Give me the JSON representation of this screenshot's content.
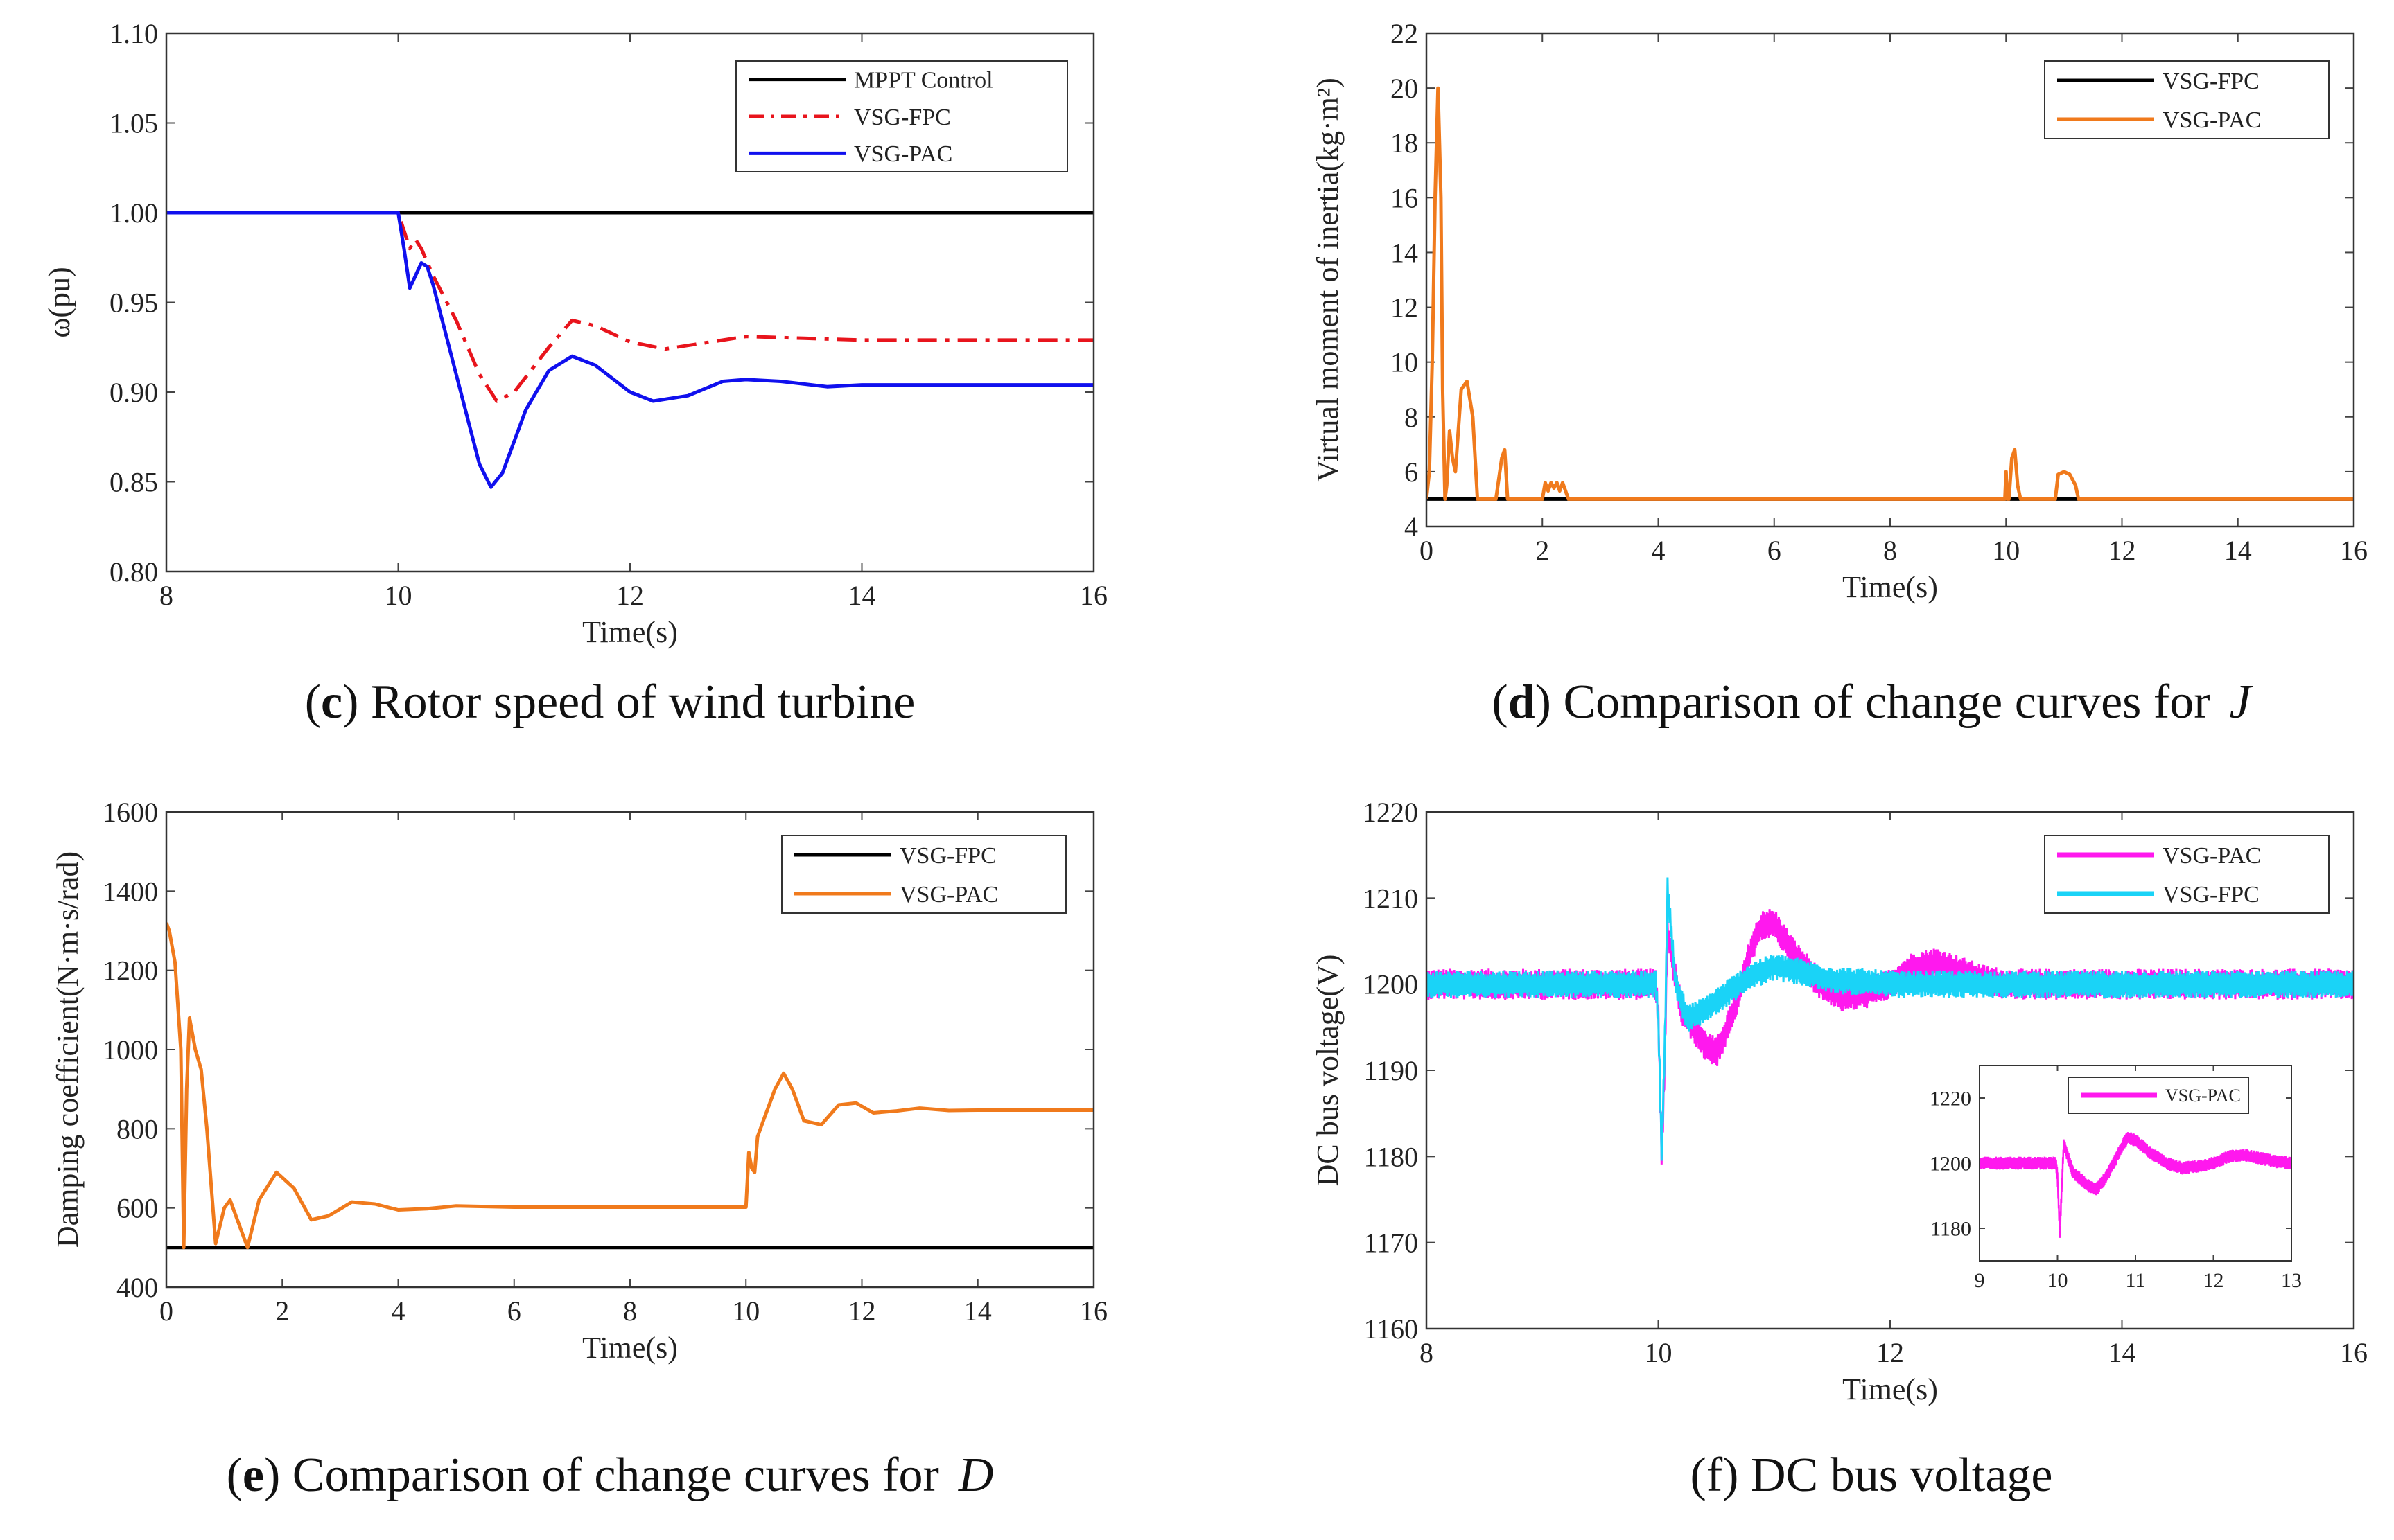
{
  "chart_data": [
    {
      "id": "c",
      "type": "line",
      "caption": {
        "letter": "c",
        "text": "Rotor speed of wind turbine",
        "symbol": ""
      },
      "xlabel": "Time(s)",
      "ylabel": "ω(pu)",
      "xlim": [
        8,
        16
      ],
      "ylim": [
        0.8,
        1.1
      ],
      "xticks": [
        8,
        10,
        12,
        14,
        16
      ],
      "yticks": [
        0.8,
        0.85,
        0.9,
        0.95,
        1.0,
        1.05,
        1.1
      ],
      "ytick_labels": [
        "0.80",
        "0.85",
        "0.90",
        "0.95",
        "1.00",
        "1.05",
        "1.10"
      ],
      "legend": [
        "MPPT Control",
        "VSG-FPC",
        "VSG-PAC"
      ],
      "series": [
        {
          "name": "MPPT Control",
          "color": "#000000",
          "style": "solid",
          "x": [
            8,
            16
          ],
          "y": [
            1.0,
            1.0
          ]
        },
        {
          "name": "VSG-FPC",
          "color": "#e8141c",
          "style": "dashed",
          "x": [
            8,
            10,
            10.05,
            10.1,
            10.15,
            10.2,
            10.3,
            10.5,
            10.7,
            10.85,
            11.0,
            11.3,
            11.5,
            11.7,
            12.0,
            12.3,
            12.7,
            13.0,
            13.5,
            14.0,
            15.0,
            16.0
          ],
          "y": [
            1.0,
            1.0,
            0.99,
            0.98,
            0.985,
            0.98,
            0.965,
            0.94,
            0.91,
            0.895,
            0.9,
            0.925,
            0.94,
            0.937,
            0.928,
            0.924,
            0.928,
            0.931,
            0.93,
            0.929,
            0.929,
            0.929
          ]
        },
        {
          "name": "VSG-PAC",
          "color": "#1010ee",
          "style": "solid",
          "x": [
            8,
            10,
            10.05,
            10.1,
            10.15,
            10.2,
            10.25,
            10.3,
            10.5,
            10.7,
            10.8,
            10.9,
            11.1,
            11.3,
            11.5,
            11.7,
            12.0,
            12.2,
            12.5,
            12.8,
            13.0,
            13.3,
            13.7,
            14.0,
            15.0,
            16.0
          ],
          "y": [
            1.0,
            1.0,
            0.98,
            0.958,
            0.965,
            0.972,
            0.97,
            0.96,
            0.91,
            0.86,
            0.847,
            0.855,
            0.89,
            0.912,
            0.92,
            0.915,
            0.9,
            0.895,
            0.898,
            0.906,
            0.907,
            0.906,
            0.903,
            0.904,
            0.904,
            0.904
          ]
        }
      ]
    },
    {
      "id": "d",
      "type": "line",
      "caption": {
        "letter": "d",
        "text": "Comparison of change curves for",
        "symbol": "J"
      },
      "xlabel": "Time(s)",
      "ylabel": "Virtual moment of inertia(kg·m²)",
      "xlim": [
        0,
        16
      ],
      "ylim": [
        4,
        22
      ],
      "xticks": [
        0,
        2,
        4,
        6,
        8,
        10,
        12,
        14,
        16
      ],
      "yticks": [
        4,
        6,
        8,
        10,
        12,
        14,
        16,
        18,
        20,
        22
      ],
      "ytick_labels": [
        "4",
        "6",
        "8",
        "10",
        "12",
        "14",
        "16",
        "18",
        "20",
        "22"
      ],
      "legend": [
        "VSG-FPC",
        "VSG-PAC"
      ],
      "series": [
        {
          "name": "VSG-FPC",
          "color": "#000000",
          "style": "solid",
          "x": [
            0,
            16
          ],
          "y": [
            5,
            5
          ]
        },
        {
          "name": "VSG-PAC",
          "color": "#f07a1c",
          "style": "solid",
          "x": [
            0,
            0.05,
            0.1,
            0.15,
            0.2,
            0.25,
            0.28,
            0.32,
            0.35,
            0.4,
            0.45,
            0.5,
            0.55,
            0.6,
            0.7,
            0.8,
            0.88,
            0.95,
            1.0,
            1.2,
            1.3,
            1.35,
            1.4,
            1.45,
            2.0,
            2.05,
            2.1,
            2.15,
            2.2,
            2.25,
            2.3,
            2.35,
            2.4,
            2.45,
            2.5,
            9.98,
            10.0,
            10.02,
            10.05,
            10.1,
            10.15,
            10.2,
            10.25,
            10.85,
            10.9,
            11.0,
            11.1,
            11.2,
            11.25,
            16.0
          ],
          "y": [
            5,
            6,
            10,
            16,
            20,
            16,
            9,
            5,
            5.5,
            7.5,
            6.5,
            6,
            7.5,
            9,
            9.3,
            8,
            5,
            5,
            5,
            5,
            6.5,
            6.8,
            5,
            5,
            5,
            5.6,
            5.3,
            5.6,
            5.4,
            5.6,
            5.3,
            5.6,
            5.3,
            5,
            5,
            5,
            6,
            5,
            5,
            6.5,
            6.8,
            5.5,
            5,
            5,
            5.9,
            6.0,
            5.9,
            5.5,
            5,
            5
          ]
        }
      ]
    },
    {
      "id": "e",
      "type": "line",
      "caption": {
        "letter": "e",
        "text": "Comparison of change curves for",
        "symbol": "D"
      },
      "xlabel": "Time(s)",
      "ylabel": "Damping coefficient(N·m·s/rad)",
      "xlim": [
        0,
        16
      ],
      "ylim": [
        400,
        1600
      ],
      "xticks": [
        0,
        2,
        4,
        6,
        8,
        10,
        12,
        14,
        16
      ],
      "yticks": [
        400,
        600,
        800,
        1000,
        1200,
        1400,
        1600
      ],
      "ytick_labels": [
        "400",
        "600",
        "800",
        "1000",
        "1200",
        "1400",
        "1600"
      ],
      "legend": [
        "VSG-FPC",
        "VSG-PAC"
      ],
      "series": [
        {
          "name": "VSG-FPC",
          "color": "#000000",
          "style": "solid",
          "x": [
            0,
            16
          ],
          "y": [
            500,
            500
          ]
        },
        {
          "name": "VSG-PAC",
          "color": "#f07a1c",
          "style": "solid",
          "x": [
            0,
            0.05,
            0.15,
            0.25,
            0.3,
            0.35,
            0.4,
            0.5,
            0.6,
            0.7,
            0.85,
            1.0,
            1.1,
            1.25,
            1.4,
            1.6,
            1.9,
            2.2,
            2.5,
            2.8,
            3.2,
            3.6,
            4.0,
            4.5,
            5.0,
            6.0,
            8.0,
            10.0,
            10.05,
            10.1,
            10.15,
            10.2,
            10.3,
            10.5,
            10.65,
            10.8,
            11.0,
            11.3,
            11.6,
            11.9,
            12.2,
            12.6,
            13.0,
            13.5,
            14.0,
            16.0
          ],
          "y": [
            1320,
            1300,
            1220,
            1000,
            500,
            900,
            1080,
            1000,
            950,
            800,
            510,
            600,
            620,
            560,
            500,
            620,
            690,
            650,
            570,
            580,
            615,
            610,
            595,
            598,
            605,
            602,
            602,
            602,
            740,
            700,
            690,
            780,
            820,
            900,
            940,
            900,
            820,
            810,
            860,
            865,
            840,
            845,
            852,
            846,
            847,
            847
          ]
        }
      ]
    },
    {
      "id": "f",
      "type": "line",
      "caption": {
        "letter": "",
        "text": "(f) DC bus voltage",
        "symbol": ""
      },
      "xlabel": "Time(s)",
      "ylabel": "DC bus voltage(V)",
      "xlim": [
        8,
        16
      ],
      "ylim": [
        1160,
        1220
      ],
      "xticks": [
        8,
        10,
        12,
        14,
        16
      ],
      "yticks": [
        1160,
        1170,
        1180,
        1190,
        1200,
        1210,
        1220
      ],
      "ytick_labels": [
        "1160",
        "1170",
        "1180",
        "1190",
        "1200",
        "1210",
        "1220"
      ],
      "legend": [
        "VSG-PAC",
        "VSG-FPC"
      ],
      "series": [
        {
          "name": "VSG-PAC",
          "color": "#ff18ee",
          "style": "band",
          "x": [
            8,
            9.98,
            10.0,
            10.03,
            10.05,
            10.08,
            10.12,
            10.2,
            10.3,
            10.4,
            10.5,
            10.6,
            10.7,
            10.8,
            10.9,
            11.0,
            11.1,
            11.2,
            11.4,
            11.6,
            11.8,
            12.0,
            12.2,
            12.4,
            12.6,
            12.8,
            13.0,
            14.0,
            16.0
          ],
          "y": [
            1200,
            1200,
            1196,
            1180,
            1188,
            1206,
            1203,
            1197,
            1195,
            1193,
            1192,
            1195,
            1199,
            1204,
            1207,
            1207,
            1205,
            1203,
            1200,
            1198.5,
            1199,
            1200,
            1202,
            1202.5,
            1201.5,
            1200.5,
            1200,
            1200,
            1200
          ],
          "amp": 1.8
        },
        {
          "name": "VSG-FPC",
          "color": "#1ad3f7",
          "style": "band",
          "x": [
            8,
            9.98,
            10.0,
            10.03,
            10.06,
            10.08,
            10.1,
            10.15,
            10.25,
            10.4,
            10.6,
            10.8,
            11.0,
            11.2,
            11.5,
            12.0,
            13.0,
            16.0
          ],
          "y": [
            1200,
            1200,
            1196,
            1180,
            1195,
            1211,
            1208,
            1200,
            1196,
            1197,
            1199,
            1201,
            1202,
            1201.5,
            1200.5,
            1200,
            1200,
            1200
          ],
          "amp": 1.6
        }
      ],
      "inset": {
        "xlim": [
          9,
          13
        ],
        "ylim": [
          1170,
          1230
        ],
        "xticks": [
          9,
          10,
          11,
          12,
          13
        ],
        "yticks": [
          1180,
          1200,
          1220
        ],
        "ytick_labels": [
          "1180",
          "1200",
          "1220"
        ],
        "legend": [
          "VSG-PAC"
        ],
        "series": [
          {
            "name": "VSG-PAC",
            "color": "#ff18ee",
            "style": "band",
            "x": [
              9,
              9.98,
              10.0,
              10.03,
              10.05,
              10.08,
              10.12,
              10.2,
              10.3,
              10.4,
              10.5,
              10.6,
              10.7,
              10.8,
              10.9,
              11.0,
              11.1,
              11.2,
              11.4,
              11.6,
              11.8,
              12.0,
              12.2,
              12.4,
              12.6,
              12.8,
              13.0
            ],
            "y": [
              1200,
              1200,
              1196,
              1178,
              1190,
              1206,
              1203,
              1197,
              1195,
              1193,
              1192,
              1195,
              1199,
              1204,
              1208,
              1207,
              1205,
              1203,
              1200,
              1198.5,
              1199,
              1200,
              1202,
              1202.5,
              1201.5,
              1200.5,
              1200
            ],
            "amp": 2.0
          }
        ]
      }
    }
  ]
}
